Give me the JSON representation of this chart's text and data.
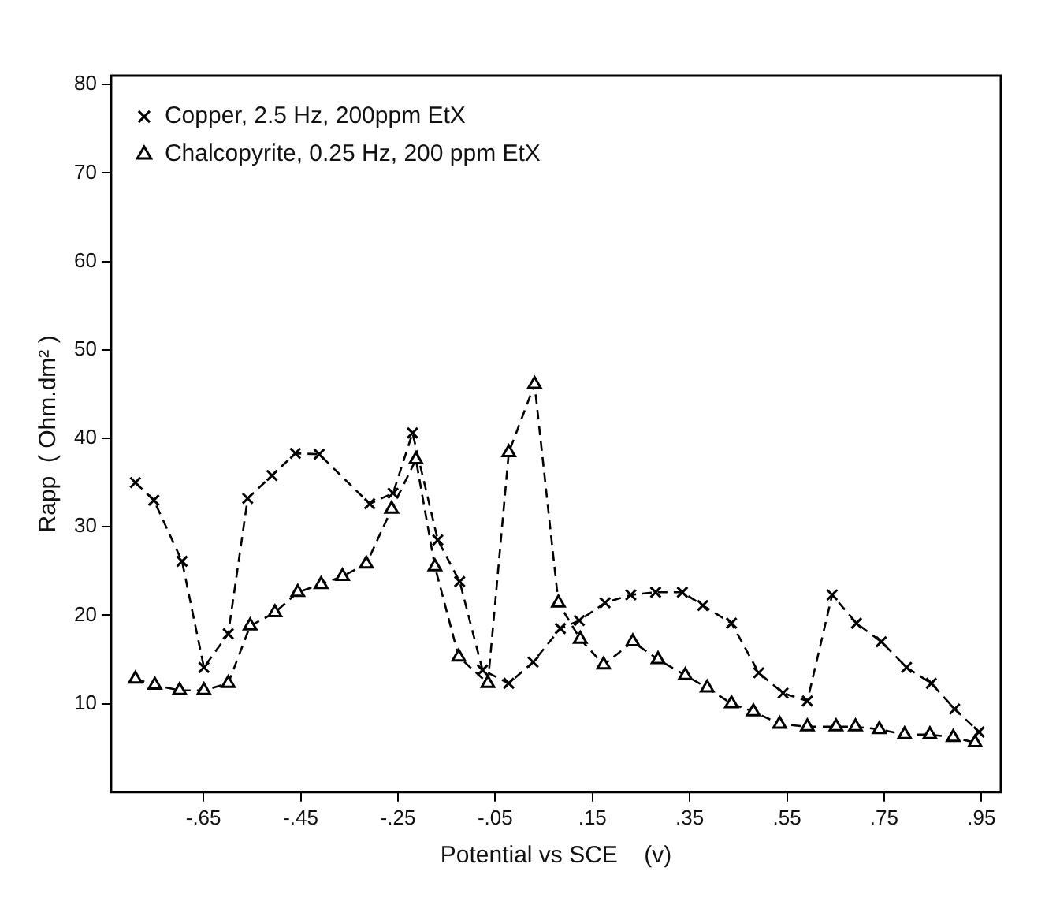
{
  "chart_data": {
    "type": "line",
    "xlabel": "Potential vs SCE    (v)",
    "ylabel": "Rapp  ( Ohm.dm² )",
    "xlim": [
      -0.84,
      0.99
    ],
    "ylim": [
      0,
      81
    ],
    "xticks": [
      {
        "value": -0.65,
        "label": "-.65"
      },
      {
        "value": -0.45,
        "label": "-.45"
      },
      {
        "value": -0.25,
        "label": "-.25"
      },
      {
        "value": -0.05,
        "label": "-.05"
      },
      {
        "value": 0.15,
        "label": ".15"
      },
      {
        "value": 0.35,
        "label": ".35"
      },
      {
        "value": 0.55,
        "label": ".55"
      },
      {
        "value": 0.75,
        "label": ".75"
      },
      {
        "value": 0.95,
        "label": ".95"
      }
    ],
    "yticks": [
      10,
      20,
      30,
      40,
      50,
      60,
      70,
      80
    ],
    "grid": false,
    "legend": "top left",
    "line_style": "dashed",
    "series": [
      {
        "name": "Copper, 2.5 Hz, 200ppm EtX",
        "color": "#000000",
        "marker": "cross",
        "x": [
          -0.79,
          -0.752,
          -0.694,
          -0.649,
          -0.599,
          -0.559,
          -0.509,
          -0.461,
          -0.412,
          -0.308,
          -0.26,
          -0.22,
          -0.168,
          -0.123,
          -0.076,
          -0.022,
          0.028,
          0.084,
          0.123,
          0.176,
          0.229,
          0.28,
          0.335,
          0.377,
          0.436,
          0.492,
          0.542,
          0.592,
          0.643,
          0.693,
          0.744,
          0.796,
          0.847,
          0.895,
          0.945
        ],
        "values": [
          35,
          33,
          26.1,
          14.1,
          17.9,
          33.2,
          35.8,
          38.3,
          38.2,
          32.6,
          33.8,
          40.6,
          28.5,
          23.8,
          13.8,
          12.3,
          14.7,
          18.5,
          19.4,
          21.4,
          22.3,
          22.6,
          22.6,
          21.1,
          19.1,
          13.5,
          11.2,
          10.3,
          22.3,
          19.1,
          17,
          14.1,
          12.3,
          9.4,
          6.8
        ]
      },
      {
        "name": "Chalcopyrite, 0.25 Hz, 200 ppm EtX",
        "color": "#000000",
        "marker": "triangle",
        "x": [
          -0.79,
          -0.75,
          -0.699,
          -0.649,
          -0.599,
          -0.554,
          -0.503,
          -0.456,
          -0.408,
          -0.364,
          -0.315,
          -0.263,
          -0.213,
          -0.174,
          -0.125,
          -0.065,
          -0.022,
          0.031,
          0.08,
          0.125,
          0.173,
          0.233,
          0.285,
          0.341,
          0.386,
          0.436,
          0.481,
          0.535,
          0.592,
          0.651,
          0.691,
          0.74,
          0.792,
          0.844,
          0.892,
          0.937
        ],
        "values": [
          12.8,
          12.1,
          11.5,
          11.5,
          12.3,
          18.8,
          20.3,
          22.6,
          23.5,
          24.4,
          25.8,
          32,
          37.6,
          25.5,
          15.3,
          12.3,
          38.4,
          46.1,
          21.4,
          17.3,
          14.4,
          17,
          15,
          13.2,
          11.8,
          10,
          9.1,
          7.7,
          7.4,
          7.4,
          7.4,
          7.1,
          6.5,
          6.5,
          6.2,
          5.6
        ]
      }
    ]
  }
}
